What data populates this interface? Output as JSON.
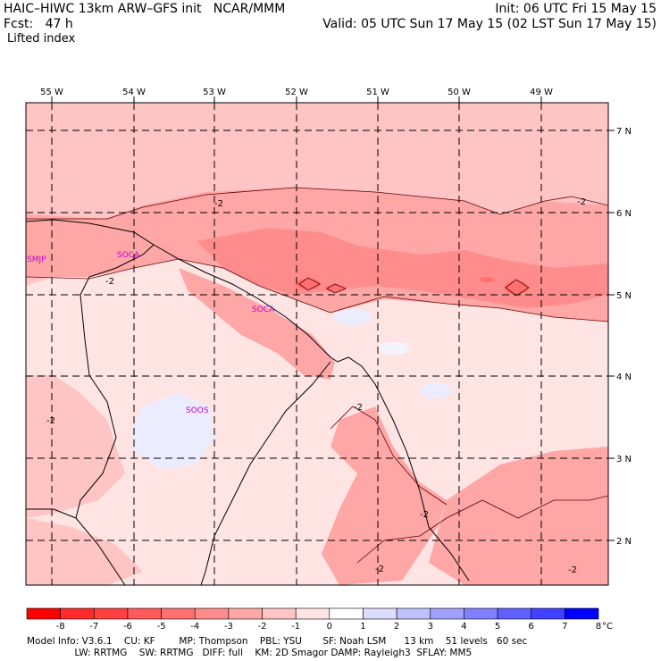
{
  "header": {
    "model_line": "HAIC–HIWC 13km ARW–GFS init   NCAR/MMM",
    "fcst_line": "Fcst:   47 h",
    "field_name": "Lifted index",
    "init_line": "Init: 06 UTC Fri 15 May 15",
    "valid_line": "Valid: 05 UTC Sun 17 May 15 (02 LST Sun 17 May 15)"
  },
  "map": {
    "lon_labels": [
      "55 W",
      "54 W",
      "53 W",
      "52 W",
      "51 W",
      "50 W",
      "49 W"
    ],
    "lat_labels": [
      "7 N",
      "6 N",
      "5 N",
      "4 N",
      "3 N",
      "2 N"
    ],
    "stations": [
      "SMJP",
      "SOCA",
      "SOCA",
      "SOOS"
    ],
    "contour_labels": [
      "-2",
      "-2",
      "-2",
      "-2",
      "-2",
      "-2",
      "-2",
      "-2"
    ]
  },
  "colorbar": {
    "ticks": [
      "-8",
      "-7",
      "-6",
      "-5",
      "-4",
      "-3",
      "-2",
      "-1",
      "0",
      "1",
      "2",
      "3",
      "4",
      "5",
      "6",
      "7",
      "8"
    ],
    "unit": "°C",
    "colors": [
      "#ff0000",
      "#ff2a2a",
      "#ff4040",
      "#ff5a5a",
      "#ff7070",
      "#ff8c8c",
      "#ffa6a6",
      "#ffc4c4",
      "#ffe4e4",
      "#ffffff",
      "#dcdcff",
      "#c0c0ff",
      "#a0a0ff",
      "#8080ff",
      "#6060ff",
      "#4040ff",
      "#0000ff"
    ]
  },
  "footer": {
    "line1": "Model Info: V3.6.1    CU: KF        MP: Thompson    PBL: YSU       SF: Noah LSM      13 km    51 levels   60 sec",
    "line2": "                LW: RRTMG    SW: RRTMG   DIFF: full    KM: 2D Smagor DAMP: Rayleigh3  SFLAY: MM5"
  }
}
